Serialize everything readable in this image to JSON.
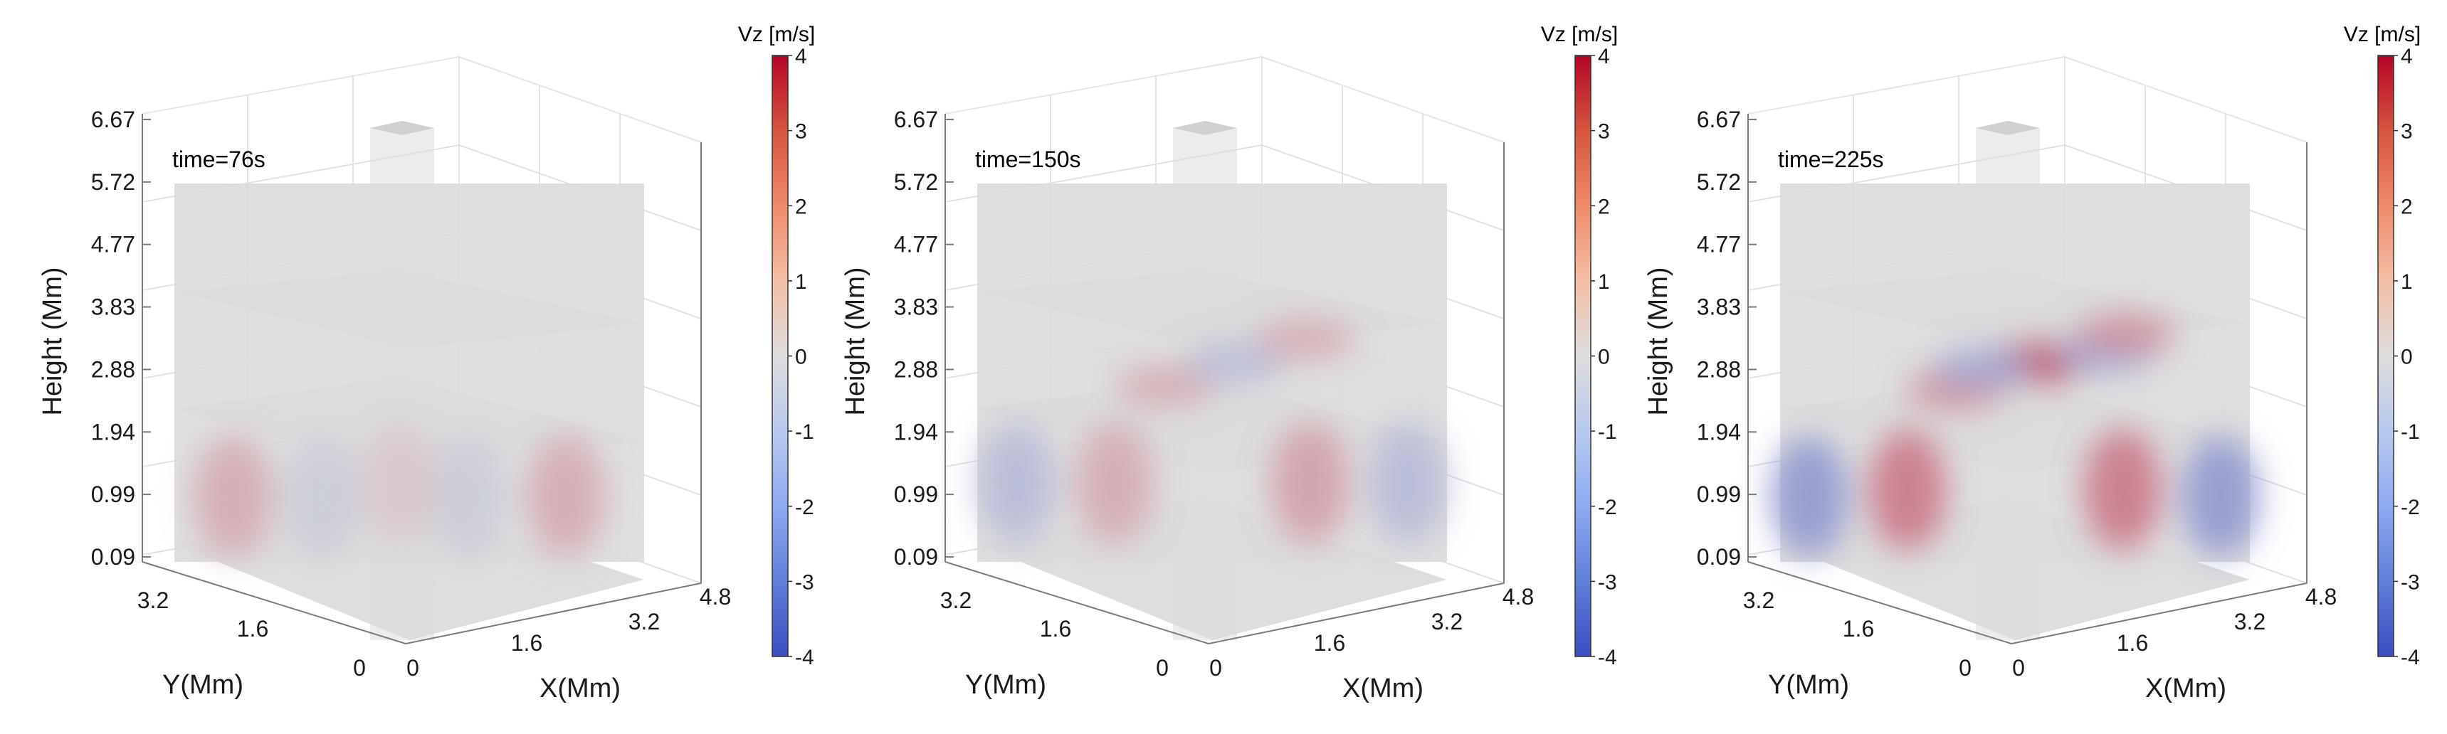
{
  "figure": {
    "colormap": {
      "title": "Vz [m/s]",
      "ticks": [
        "4",
        "3",
        "2",
        "1",
        "0",
        "-1",
        "-2",
        "-3",
        "-4"
      ],
      "colors": {
        "max": "#b40426",
        "mid": "#dddddd",
        "min": "#3b4cc0"
      }
    },
    "axes": {
      "zlabel": "Height (Mm)",
      "xlabel": "X(Mm)",
      "ylabel": "Y(Mm)",
      "zticks": [
        "6.67",
        "5.72",
        "4.77",
        "3.83",
        "2.88",
        "1.94",
        "0.99",
        "0.09"
      ],
      "xticks": [
        "0",
        "1.6",
        "3.2",
        "4.8"
      ],
      "yticks": [
        "3.2",
        "1.6",
        "0"
      ]
    }
  },
  "chart_data": [
    {
      "type": "heatmap",
      "title": "time=76s",
      "xlabel": "X(Mm)",
      "ylabel": "Y(Mm)",
      "zlabel": "Height (Mm)",
      "xlim": [
        0,
        4.8
      ],
      "ylim": [
        0,
        4.8
      ],
      "zlim": [
        0.09,
        6.67
      ],
      "color_label": "Vz [m/s]",
      "clim": [
        -4,
        4
      ],
      "features": [
        {
          "slice": "vertical",
          "x": 0.6,
          "z": 1.0,
          "vz": 1.0
        },
        {
          "slice": "vertical",
          "x": 1.5,
          "z": 1.0,
          "vz": -0.5
        },
        {
          "slice": "vertical",
          "x": 3.0,
          "z": 1.0,
          "vz": -0.5
        },
        {
          "slice": "vertical",
          "x": 4.0,
          "z": 1.0,
          "vz": 1.0
        },
        {
          "slice": "vertical",
          "x": 2.3,
          "z": 1.2,
          "vz": 0.4
        }
      ]
    },
    {
      "type": "heatmap",
      "title": "time=150s",
      "xlabel": "X(Mm)",
      "ylabel": "Y(Mm)",
      "zlabel": "Height (Mm)",
      "xlim": [
        0,
        4.8
      ],
      "ylim": [
        0,
        4.8
      ],
      "zlim": [
        0.09,
        6.67
      ],
      "color_label": "Vz [m/s]",
      "clim": [
        -4,
        4
      ],
      "features": [
        {
          "slice": "vertical",
          "x": 0.4,
          "z": 1.2,
          "vz": -1.0
        },
        {
          "slice": "vertical",
          "x": 1.4,
          "z": 1.2,
          "vz": 1.0
        },
        {
          "slice": "vertical",
          "x": 3.4,
          "z": 1.2,
          "vz": 1.2
        },
        {
          "slice": "vertical",
          "x": 4.4,
          "z": 1.2,
          "vz": -1.0
        },
        {
          "slice": "horizontal",
          "x": 1.2,
          "y": 2.4,
          "vz": 1.0
        },
        {
          "slice": "horizontal",
          "x": 2.4,
          "y": 2.4,
          "vz": -1.0
        },
        {
          "slice": "horizontal",
          "x": 3.6,
          "y": 2.4,
          "vz": 1.0
        }
      ]
    },
    {
      "type": "heatmap",
      "title": "time=225s",
      "xlabel": "X(Mm)",
      "ylabel": "Y(Mm)",
      "zlabel": "Height (Mm)",
      "xlim": [
        0,
        4.8
      ],
      "ylim": [
        0,
        4.8
      ],
      "zlim": [
        0.09,
        6.67
      ],
      "color_label": "Vz [m/s]",
      "clim": [
        -4,
        4
      ],
      "features": [
        {
          "slice": "vertical",
          "x": 0.3,
          "z": 1.0,
          "vz": -2.0
        },
        {
          "slice": "vertical",
          "x": 1.3,
          "z": 1.1,
          "vz": 2.0
        },
        {
          "slice": "vertical",
          "x": 3.5,
          "z": 1.1,
          "vz": 2.0
        },
        {
          "slice": "vertical",
          "x": 4.5,
          "z": 1.0,
          "vz": -2.0
        },
        {
          "slice": "horizontal",
          "x": 2.4,
          "y": 2.4,
          "vz": 3.0
        },
        {
          "slice": "horizontal",
          "x": 1.0,
          "y": 2.4,
          "vz": 1.5
        },
        {
          "slice": "horizontal",
          "x": 1.8,
          "y": 2.8,
          "vz": -1.5
        },
        {
          "slice": "horizontal",
          "x": 3.2,
          "y": 2.0,
          "vz": -1.5
        },
        {
          "slice": "horizontal",
          "x": 3.9,
          "y": 2.4,
          "vz": 1.5
        }
      ]
    }
  ]
}
